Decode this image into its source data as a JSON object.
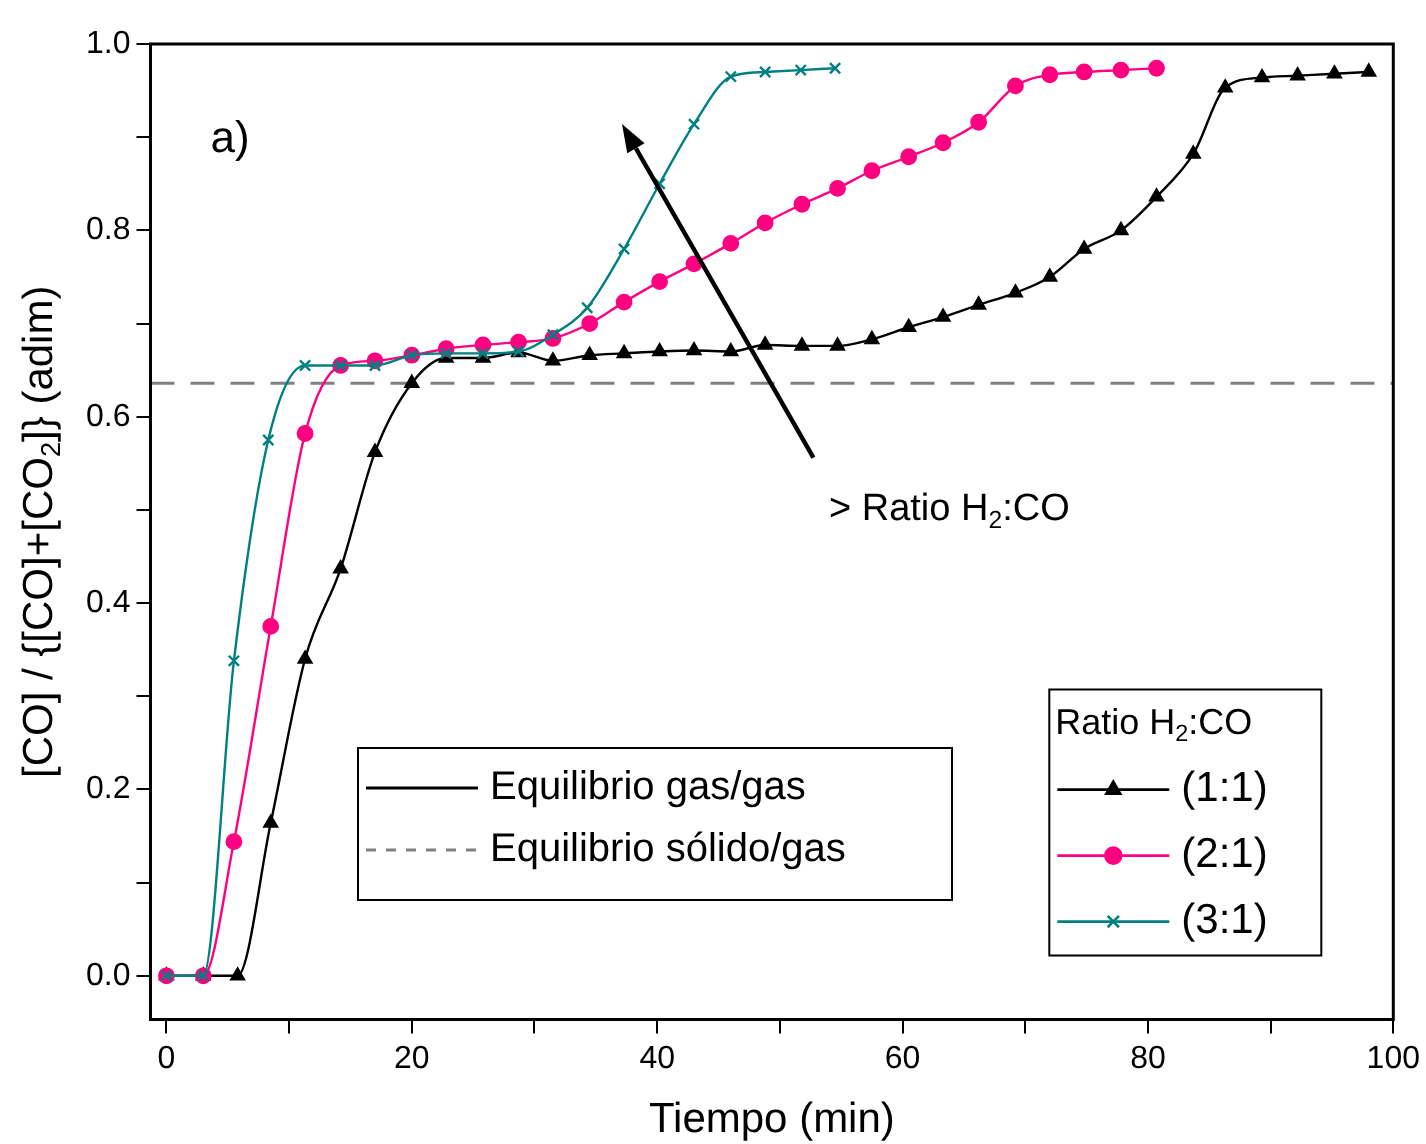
{
  "chart_data": {
    "type": "line",
    "xlabel": "Tiempo (min)",
    "ylabel": "[CO] / {[CO]+[CO$_{2}$]} (adim)",
    "xlim": [
      -1.3,
      100
    ],
    "ylim": [
      -0.047,
      1.0
    ],
    "xticks": [
      0,
      {
        "value": 10,
        "label": null
      },
      20,
      {
        "value": 30,
        "label": null
      },
      40,
      {
        "value": 50,
        "label": null
      },
      60,
      {
        "value": 70,
        "label": null
      },
      80,
      {
        "value": 90,
        "label": null
      },
      100
    ],
    "yticks": [
      {
        "value": 0,
        "label": "0.0"
      },
      {
        "value": 0.1,
        "label": null
      },
      0.2,
      {
        "value": 0.3,
        "label": null
      },
      0.4,
      {
        "value": 0.5,
        "label": null
      },
      0.6,
      {
        "value": 0.7,
        "label": null
      },
      0.8,
      {
        "value": 0.9,
        "label": null
      },
      {
        "value": 1,
        "label": "1.0"
      }
    ],
    "legend": "bottom right",
    "legend_title": "Ratio H$_{2}$:CO",
    "line_style": "solid",
    "series": [
      {
        "name": "(1:1)",
        "color": "#000000",
        "marker": "triangle",
        "x": [
          0,
          3,
          5.8,
          8.5,
          11.3,
          14.2,
          17,
          20,
          22.8,
          25.8,
          28.7,
          31.5,
          34.5,
          37.3,
          40.2,
          43,
          46,
          48.8,
          51.8,
          54.7,
          57.5,
          60.5,
          63.3,
          66.2,
          69.2,
          72,
          74.8,
          77.8,
          80.7,
          83.7,
          86.3,
          89.3,
          92.2,
          95.2,
          98
        ],
        "values": [
          0,
          0,
          0,
          0.164,
          0.34,
          0.437,
          0.562,
          0.636,
          0.663,
          0.663,
          0.669,
          0.66,
          0.666,
          0.668,
          0.67,
          0.671,
          0.67,
          0.677,
          0.676,
          0.676,
          0.683,
          0.696,
          0.707,
          0.72,
          0.733,
          0.75,
          0.78,
          0.8,
          0.836,
          0.882,
          0.953,
          0.964,
          0.966,
          0.968,
          0.97
        ]
      },
      {
        "name": "(2:1)",
        "color": "#ff0080",
        "marker": "circle",
        "x": [
          0,
          3,
          5.5,
          8.5,
          11.3,
          14.2,
          17,
          20,
          22.8,
          25.8,
          28.7,
          31.5,
          34.5,
          37.3,
          40.2,
          43,
          46,
          48.8,
          51.8,
          54.7,
          57.5,
          60.5,
          63.3,
          66.2,
          69.2,
          72,
          74.8,
          77.8,
          80.7
        ],
        "values": [
          0,
          0,
          0.144,
          0.375,
          0.582,
          0.655,
          0.66,
          0.666,
          0.673,
          0.677,
          0.68,
          0.684,
          0.7,
          0.723,
          0.745,
          0.764,
          0.786,
          0.808,
          0.828,
          0.845,
          0.864,
          0.879,
          0.894,
          0.916,
          0.955,
          0.967,
          0.97,
          0.972,
          0.974
        ]
      },
      {
        "name": "(3:1)",
        "color": "#008080",
        "marker": "cross",
        "x": [
          0,
          3,
          5.5,
          8.3,
          11.3,
          14.2,
          17,
          20,
          22.8,
          25.8,
          28.7,
          31.5,
          34.3,
          37.3,
          40.2,
          43,
          46,
          48.8,
          51.7,
          54.5
        ],
        "values": [
          0,
          0,
          0.338,
          0.575,
          0.655,
          0.655,
          0.655,
          0.666,
          0.668,
          0.668,
          0.67,
          0.688,
          0.717,
          0.78,
          0.85,
          0.914,
          0.965,
          0.97,
          0.972,
          0.974
        ]
      }
    ],
    "ref_lines": [
      {
        "axis": "y",
        "value": 0.636,
        "label": "Equilibrio sólido/gas",
        "color": "#808080",
        "line_style": "dashed"
      }
    ],
    "annotations": [
      "a)",
      "> Ratio H$_{2}$:CO",
      "Equilibrio gas/gas"
    ]
  }
}
